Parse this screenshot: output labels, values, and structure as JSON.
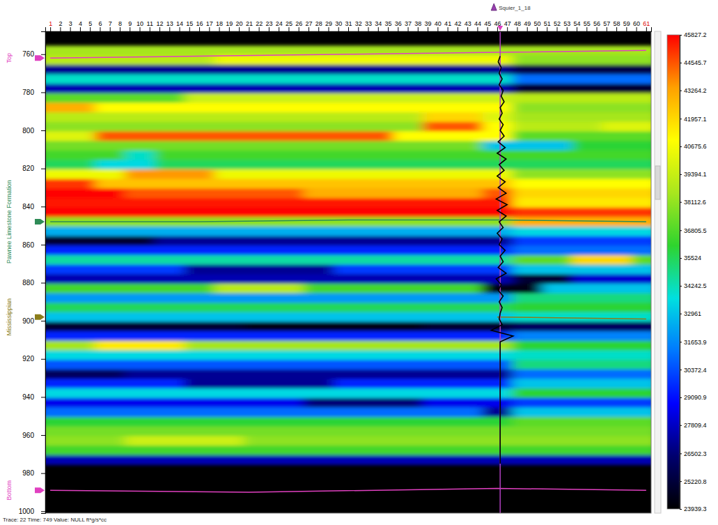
{
  "chart_data": {
    "type": "heatmap",
    "x": [
      1,
      4,
      7,
      10,
      13,
      16,
      19,
      22,
      25,
      28,
      31,
      34,
      37,
      40,
      43,
      46,
      49,
      52,
      55,
      58,
      61
    ],
    "y": [
      758,
      763,
      768,
      773,
      778,
      783,
      788,
      793,
      798,
      803,
      808,
      813,
      818,
      823,
      828,
      833,
      838,
      843,
      848,
      853,
      858,
      863,
      868,
      873,
      878,
      883,
      888,
      893,
      898,
      903,
      908,
      913,
      918,
      923,
      928,
      933,
      938,
      943,
      948,
      953,
      958,
      963,
      968,
      973
    ],
    "z": [
      [
        38500,
        38500,
        38500,
        38500,
        38500,
        38500,
        38500,
        38500,
        38500,
        38500,
        38500,
        38500,
        38500,
        38500,
        38500,
        38500,
        38500,
        38500,
        38500,
        38500,
        38500
      ],
      [
        39000,
        39000,
        39000,
        39000,
        39000,
        39000,
        40500,
        40500,
        40500,
        40500,
        40500,
        40500,
        40500,
        40500,
        40500,
        40500,
        38000,
        38000,
        38000,
        38000,
        38000
      ],
      [
        27000,
        27000,
        27000,
        27000,
        27000,
        27000,
        27000,
        27000,
        27000,
        27000,
        27000,
        27000,
        27000,
        27000,
        27000,
        27000,
        25500,
        25500,
        25500,
        25500,
        25500
      ],
      [
        34000,
        34000,
        34000,
        34000,
        34000,
        34000,
        34000,
        34000,
        34000,
        34000,
        34000,
        34000,
        34000,
        34000,
        34000,
        34000,
        31000,
        31000,
        31000,
        31000,
        31000
      ],
      [
        27500,
        27500,
        27500,
        27500,
        27500,
        27500,
        27500,
        27500,
        27500,
        27500,
        27500,
        27500,
        27500,
        27500,
        27500,
        27500,
        25000,
        25000,
        25000,
        25000,
        25000
      ],
      [
        37000,
        37000,
        37000,
        37000,
        37000,
        39500,
        39500,
        39500,
        39500,
        39500,
        39500,
        39500,
        39500,
        39500,
        39500,
        39500,
        39000,
        39000,
        39000,
        39000,
        39000
      ],
      [
        43000,
        43000,
        41000,
        41000,
        41000,
        41000,
        41000,
        41000,
        41000,
        41000,
        41000,
        41000,
        41000,
        41000,
        41000,
        41000,
        38000,
        38000,
        38000,
        38000,
        38000
      ],
      [
        39000,
        39000,
        39000,
        39000,
        39000,
        39000,
        39000,
        39000,
        39000,
        39000,
        39000,
        39000,
        39000,
        42000,
        42000,
        40000,
        38500,
        38500,
        38500,
        38500,
        38500
      ],
      [
        38000,
        38000,
        38000,
        38000,
        38000,
        38000,
        38000,
        38000,
        38000,
        38000,
        38000,
        38000,
        38000,
        44500,
        44500,
        41000,
        39000,
        39000,
        39000,
        40000,
        40000
      ],
      [
        40000,
        40000,
        44500,
        44500,
        44500,
        44500,
        44500,
        44500,
        44500,
        44500,
        44500,
        44500,
        41000,
        41000,
        41000,
        41000,
        37000,
        37000,
        37000,
        37000,
        37000
      ],
      [
        37500,
        37500,
        37500,
        37500,
        37500,
        37500,
        37500,
        37500,
        37500,
        37500,
        37500,
        37500,
        37500,
        37500,
        37500,
        33000,
        33000,
        33000,
        36000,
        36000,
        36000
      ],
      [
        36500,
        36500,
        36500,
        34000,
        36500,
        36500,
        36500,
        36500,
        36500,
        36500,
        36500,
        36500,
        36500,
        36500,
        36500,
        36500,
        36500,
        36500,
        36500,
        36500,
        36500
      ],
      [
        35500,
        35500,
        33500,
        33500,
        35500,
        35500,
        35500,
        35500,
        35500,
        35500,
        35500,
        35500,
        35500,
        35500,
        35500,
        35500,
        35500,
        35500,
        35500,
        35500,
        35500
      ],
      [
        40500,
        40500,
        40500,
        43500,
        43500,
        43500,
        40500,
        40500,
        40500,
        40500,
        40500,
        40500,
        40500,
        40500,
        40500,
        40500,
        38000,
        38000,
        38000,
        38000,
        38000
      ],
      [
        45000,
        45000,
        42500,
        42500,
        42500,
        42500,
        42500,
        42500,
        42500,
        42500,
        42500,
        42500,
        42500,
        42500,
        42500,
        42500,
        41000,
        41000,
        41000,
        41000,
        41000
      ],
      [
        45827,
        45827,
        45827,
        44500,
        44500,
        44500,
        44500,
        44500,
        44500,
        43000,
        43000,
        43000,
        43000,
        43000,
        43000,
        44500,
        42000,
        42000,
        42000,
        42000,
        42000
      ],
      [
        45500,
        45500,
        45500,
        45500,
        45500,
        45500,
        45500,
        45500,
        45500,
        45500,
        45500,
        45500,
        45500,
        45500,
        45500,
        45500,
        41500,
        41500,
        41500,
        41500,
        41500
      ],
      [
        45827,
        45827,
        45827,
        45827,
        45827,
        45827,
        45827,
        45827,
        45827,
        45827,
        45827,
        45827,
        45827,
        45827,
        45827,
        45827,
        45000,
        45000,
        45000,
        45000,
        45000
      ],
      [
        38000,
        38000,
        38000,
        38000,
        38000,
        38000,
        38000,
        38000,
        38000,
        38000,
        38000,
        38000,
        38000,
        38000,
        38000,
        38000,
        43000,
        43000,
        43000,
        43000,
        43000
      ],
      [
        32500,
        32500,
        32500,
        32500,
        32500,
        32500,
        32500,
        32500,
        32500,
        32500,
        32500,
        32500,
        32500,
        32500,
        32500,
        32500,
        33500,
        33500,
        33500,
        33500,
        33500
      ],
      [
        25000,
        25000,
        25000,
        25000,
        27000,
        27000,
        27000,
        27000,
        27000,
        27000,
        27000,
        27000,
        27000,
        27000,
        27000,
        27000,
        30000,
        30000,
        30000,
        30000,
        30000
      ],
      [
        29500,
        29500,
        29500,
        29500,
        29500,
        29500,
        29500,
        29500,
        29500,
        29500,
        29500,
        29500,
        29500,
        29500,
        29500,
        29500,
        31000,
        31000,
        31000,
        31000,
        31000
      ],
      [
        34500,
        34500,
        34500,
        34500,
        34500,
        34500,
        34500,
        34500,
        34500,
        34500,
        34500,
        34500,
        34500,
        34500,
        34500,
        34500,
        37000,
        37000,
        42000,
        42000,
        37000
      ],
      [
        30000,
        30000,
        30000,
        30000,
        30000,
        27000,
        27000,
        27000,
        27000,
        27000,
        30000,
        30000,
        30000,
        30000,
        30000,
        30000,
        33000,
        33000,
        33000,
        33000,
        33000
      ],
      [
        27500,
        27500,
        27500,
        27500,
        27500,
        27500,
        27500,
        27500,
        27500,
        27500,
        27500,
        27500,
        27500,
        27500,
        27500,
        27500,
        25000,
        25000,
        28000,
        28000,
        28000
      ],
      [
        36500,
        36500,
        36500,
        36500,
        36500,
        36500,
        39000,
        39000,
        39000,
        36500,
        36500,
        36500,
        36500,
        36500,
        36500,
        24500,
        24500,
        33000,
        33000,
        33000,
        33000
      ],
      [
        32000,
        32000,
        32000,
        32000,
        32000,
        32000,
        32000,
        32000,
        32000,
        32000,
        32000,
        32000,
        32000,
        32000,
        32000,
        32000,
        35000,
        35000,
        35000,
        35000,
        35000
      ],
      [
        35500,
        35500,
        35500,
        35500,
        35500,
        35500,
        35500,
        35500,
        35500,
        35500,
        35500,
        35500,
        35500,
        35500,
        35500,
        35500,
        36000,
        36000,
        36000,
        36000,
        36000
      ],
      [
        33000,
        33000,
        33000,
        33000,
        33000,
        33000,
        33000,
        33000,
        33000,
        33000,
        33000,
        33000,
        33000,
        33000,
        33000,
        33000,
        34000,
        34000,
        34000,
        34000,
        34000
      ],
      [
        25000,
        25000,
        25000,
        25000,
        25000,
        25000,
        25000,
        24500,
        24500,
        24500,
        24500,
        24500,
        24500,
        25000,
        25000,
        25000,
        26000,
        26000,
        26000,
        26000,
        26000
      ],
      [
        29500,
        29500,
        29500,
        29500,
        29500,
        29500,
        29500,
        29500,
        29500,
        29500,
        29500,
        29500,
        29500,
        29500,
        29500,
        29500,
        31500,
        31500,
        31500,
        31500,
        31500
      ],
      [
        38500,
        38500,
        41500,
        41500,
        41500,
        38500,
        38500,
        38500,
        38500,
        38500,
        38500,
        38500,
        38500,
        38500,
        38500,
        38500,
        36000,
        36000,
        36000,
        36000,
        36000
      ],
      [
        33500,
        33500,
        33500,
        33500,
        33500,
        33500,
        33500,
        33500,
        33500,
        33500,
        33500,
        33500,
        33500,
        33500,
        33500,
        33500,
        34000,
        34000,
        34000,
        34000,
        34000
      ],
      [
        30500,
        30500,
        30500,
        30500,
        30500,
        30500,
        30500,
        30500,
        30500,
        30500,
        30500,
        30500,
        30500,
        30500,
        30500,
        30500,
        35000,
        35000,
        35000,
        35000,
        35000
      ],
      [
        26000,
        26000,
        26000,
        27000,
        27000,
        27000,
        27000,
        27000,
        27000,
        27000,
        27000,
        27000,
        27000,
        27000,
        27000,
        27000,
        31000,
        31000,
        31000,
        31000,
        31000
      ],
      [
        29500,
        29500,
        29500,
        29500,
        29500,
        27000,
        27000,
        27000,
        27000,
        27000,
        29500,
        29500,
        29500,
        29500,
        29500,
        29500,
        33000,
        33000,
        33000,
        33000,
        33000
      ],
      [
        33500,
        33500,
        33500,
        33500,
        33500,
        33500,
        33500,
        33500,
        33500,
        33500,
        33500,
        33500,
        33500,
        33500,
        33500,
        33500,
        36000,
        36000,
        36000,
        36000,
        36000
      ],
      [
        28500,
        28500,
        28500,
        28500,
        28500,
        28500,
        28500,
        28500,
        28500,
        26500,
        26500,
        26500,
        26500,
        28500,
        28500,
        28500,
        30000,
        30000,
        30000,
        30000,
        30000
      ],
      [
        31000,
        31000,
        31000,
        31000,
        31000,
        31000,
        31000,
        31000,
        31000,
        31000,
        31000,
        31000,
        31000,
        31000,
        31000,
        27000,
        33000,
        33000,
        33000,
        33000,
        33000
      ],
      [
        36000,
        36000,
        36000,
        36000,
        36000,
        36000,
        36000,
        36000,
        36000,
        36000,
        36000,
        36000,
        36000,
        36000,
        36000,
        36000,
        37000,
        37000,
        37000,
        37000,
        37000
      ],
      [
        37500,
        37500,
        37500,
        37500,
        37500,
        37500,
        37500,
        37500,
        37500,
        37500,
        37500,
        37500,
        37500,
        37500,
        37500,
        37500,
        37500,
        37500,
        37500,
        37500,
        37500
      ],
      [
        38000,
        38000,
        38000,
        39500,
        39500,
        39500,
        39500,
        38000,
        38000,
        38000,
        38000,
        38000,
        38000,
        38000,
        38000,
        38000,
        38000,
        38000,
        38000,
        38000,
        38000
      ],
      [
        36500,
        36500,
        36500,
        36500,
        36500,
        36500,
        36500,
        36500,
        36500,
        36500,
        36500,
        36500,
        36500,
        36500,
        36500,
        36500,
        36500,
        36500,
        36500,
        36500,
        36500
      ],
      [
        27500,
        27500,
        27500,
        27500,
        27500,
        27500,
        27500,
        27500,
        27500,
        27500,
        27500,
        27500,
        27500,
        27500,
        27500,
        27500,
        27500,
        27500,
        27500,
        27500,
        27500
      ]
    ],
    "xlim": [
      0.5,
      61.5
    ],
    "ylim": [
      748,
      1001
    ],
    "xticks": [
      1,
      2,
      3,
      4,
      5,
      6,
      7,
      8,
      9,
      10,
      11,
      12,
      13,
      14,
      15,
      16,
      17,
      18,
      19,
      20,
      21,
      22,
      23,
      24,
      25,
      26,
      27,
      28,
      29,
      30,
      31,
      32,
      33,
      34,
      35,
      36,
      37,
      38,
      39,
      40,
      41,
      42,
      43,
      44,
      45,
      46,
      47,
      48,
      49,
      50,
      51,
      52,
      53,
      54,
      55,
      56,
      57,
      58,
      59,
      60,
      61
    ],
    "yticks": [
      760,
      780,
      800,
      820,
      840,
      860,
      880,
      900,
      920,
      940,
      960,
      980,
      1000
    ],
    "colorbar": {
      "range": [
        23939.3,
        45827.2
      ],
      "ticks": [
        45827.2,
        44545.7,
        43264.2,
        41957.1,
        40675.6,
        39394.1,
        38112.6,
        36805.5,
        35524,
        34242.5,
        32961,
        31653.9,
        30372.4,
        29090.9,
        27809.4,
        26502.3,
        25220.8,
        23939.3
      ],
      "colors": [
        "#000000",
        "#00006e",
        "#0000ff",
        "#0078ff",
        "#00e0e0",
        "#2ed42e",
        "#a8e61e",
        "#ffff00",
        "#ffa000",
        "#ff0000"
      ]
    },
    "horizons": [
      {
        "name": "Top",
        "color": "#e040c0",
        "x": [
          1,
          16,
          31,
          46,
          61
        ],
        "t": [
          762,
          761,
          760,
          759,
          758
        ]
      },
      {
        "name": "Pawnee Limestone Formation",
        "color": "#2e8b57",
        "x": [
          1,
          16,
          31,
          46,
          61
        ],
        "t": [
          848,
          848,
          847,
          847,
          848
        ]
      },
      {
        "name": "Mississippian",
        "color": "#8b7d1a",
        "x": [
          46,
          61
        ],
        "t": [
          898,
          899
        ]
      },
      {
        "name": "Bottom",
        "color": "#e040c0",
        "x": [
          1,
          21,
          46,
          61
        ],
        "t": [
          989,
          990,
          988,
          989
        ]
      }
    ],
    "well": {
      "name": "Squier_1_18",
      "trace": 46.3,
      "log": {
        "time": [
          761,
          764,
          767,
          770,
          773,
          776,
          779,
          782,
          785,
          788,
          791,
          794,
          797,
          800,
          803,
          806,
          809,
          812,
          815,
          818,
          821,
          824,
          827,
          830,
          833,
          836,
          839,
          842,
          845,
          848,
          851,
          854,
          857,
          860,
          863,
          866,
          869,
          872,
          875,
          878,
          881,
          884,
          887,
          890,
          893,
          896,
          899,
          902,
          905,
          908,
          911,
          975
        ],
        "values": [
          46.3,
          46.1,
          46.4,
          46.2,
          46.5,
          46.2,
          46.6,
          46.4,
          46.7,
          46.3,
          46.5,
          46.2,
          46.6,
          46.3,
          46.7,
          46.1,
          46.8,
          46.0,
          46.9,
          46.2,
          46.7,
          46.0,
          46.8,
          46.1,
          46.9,
          45.9,
          47.0,
          46.0,
          46.9,
          46.2,
          46.6,
          46.0,
          46.5,
          46.2,
          46.8,
          46.3,
          46.6,
          46.1,
          46.9,
          45.9,
          46.4,
          46.1,
          46.6,
          46.2,
          46.5,
          46.3,
          46.2,
          46.5,
          45.4,
          47.6,
          46.3,
          46.3
        ]
      }
    },
    "status": "Trace: 22 Time: 749 Value: NULL ft*g/s*cc"
  }
}
